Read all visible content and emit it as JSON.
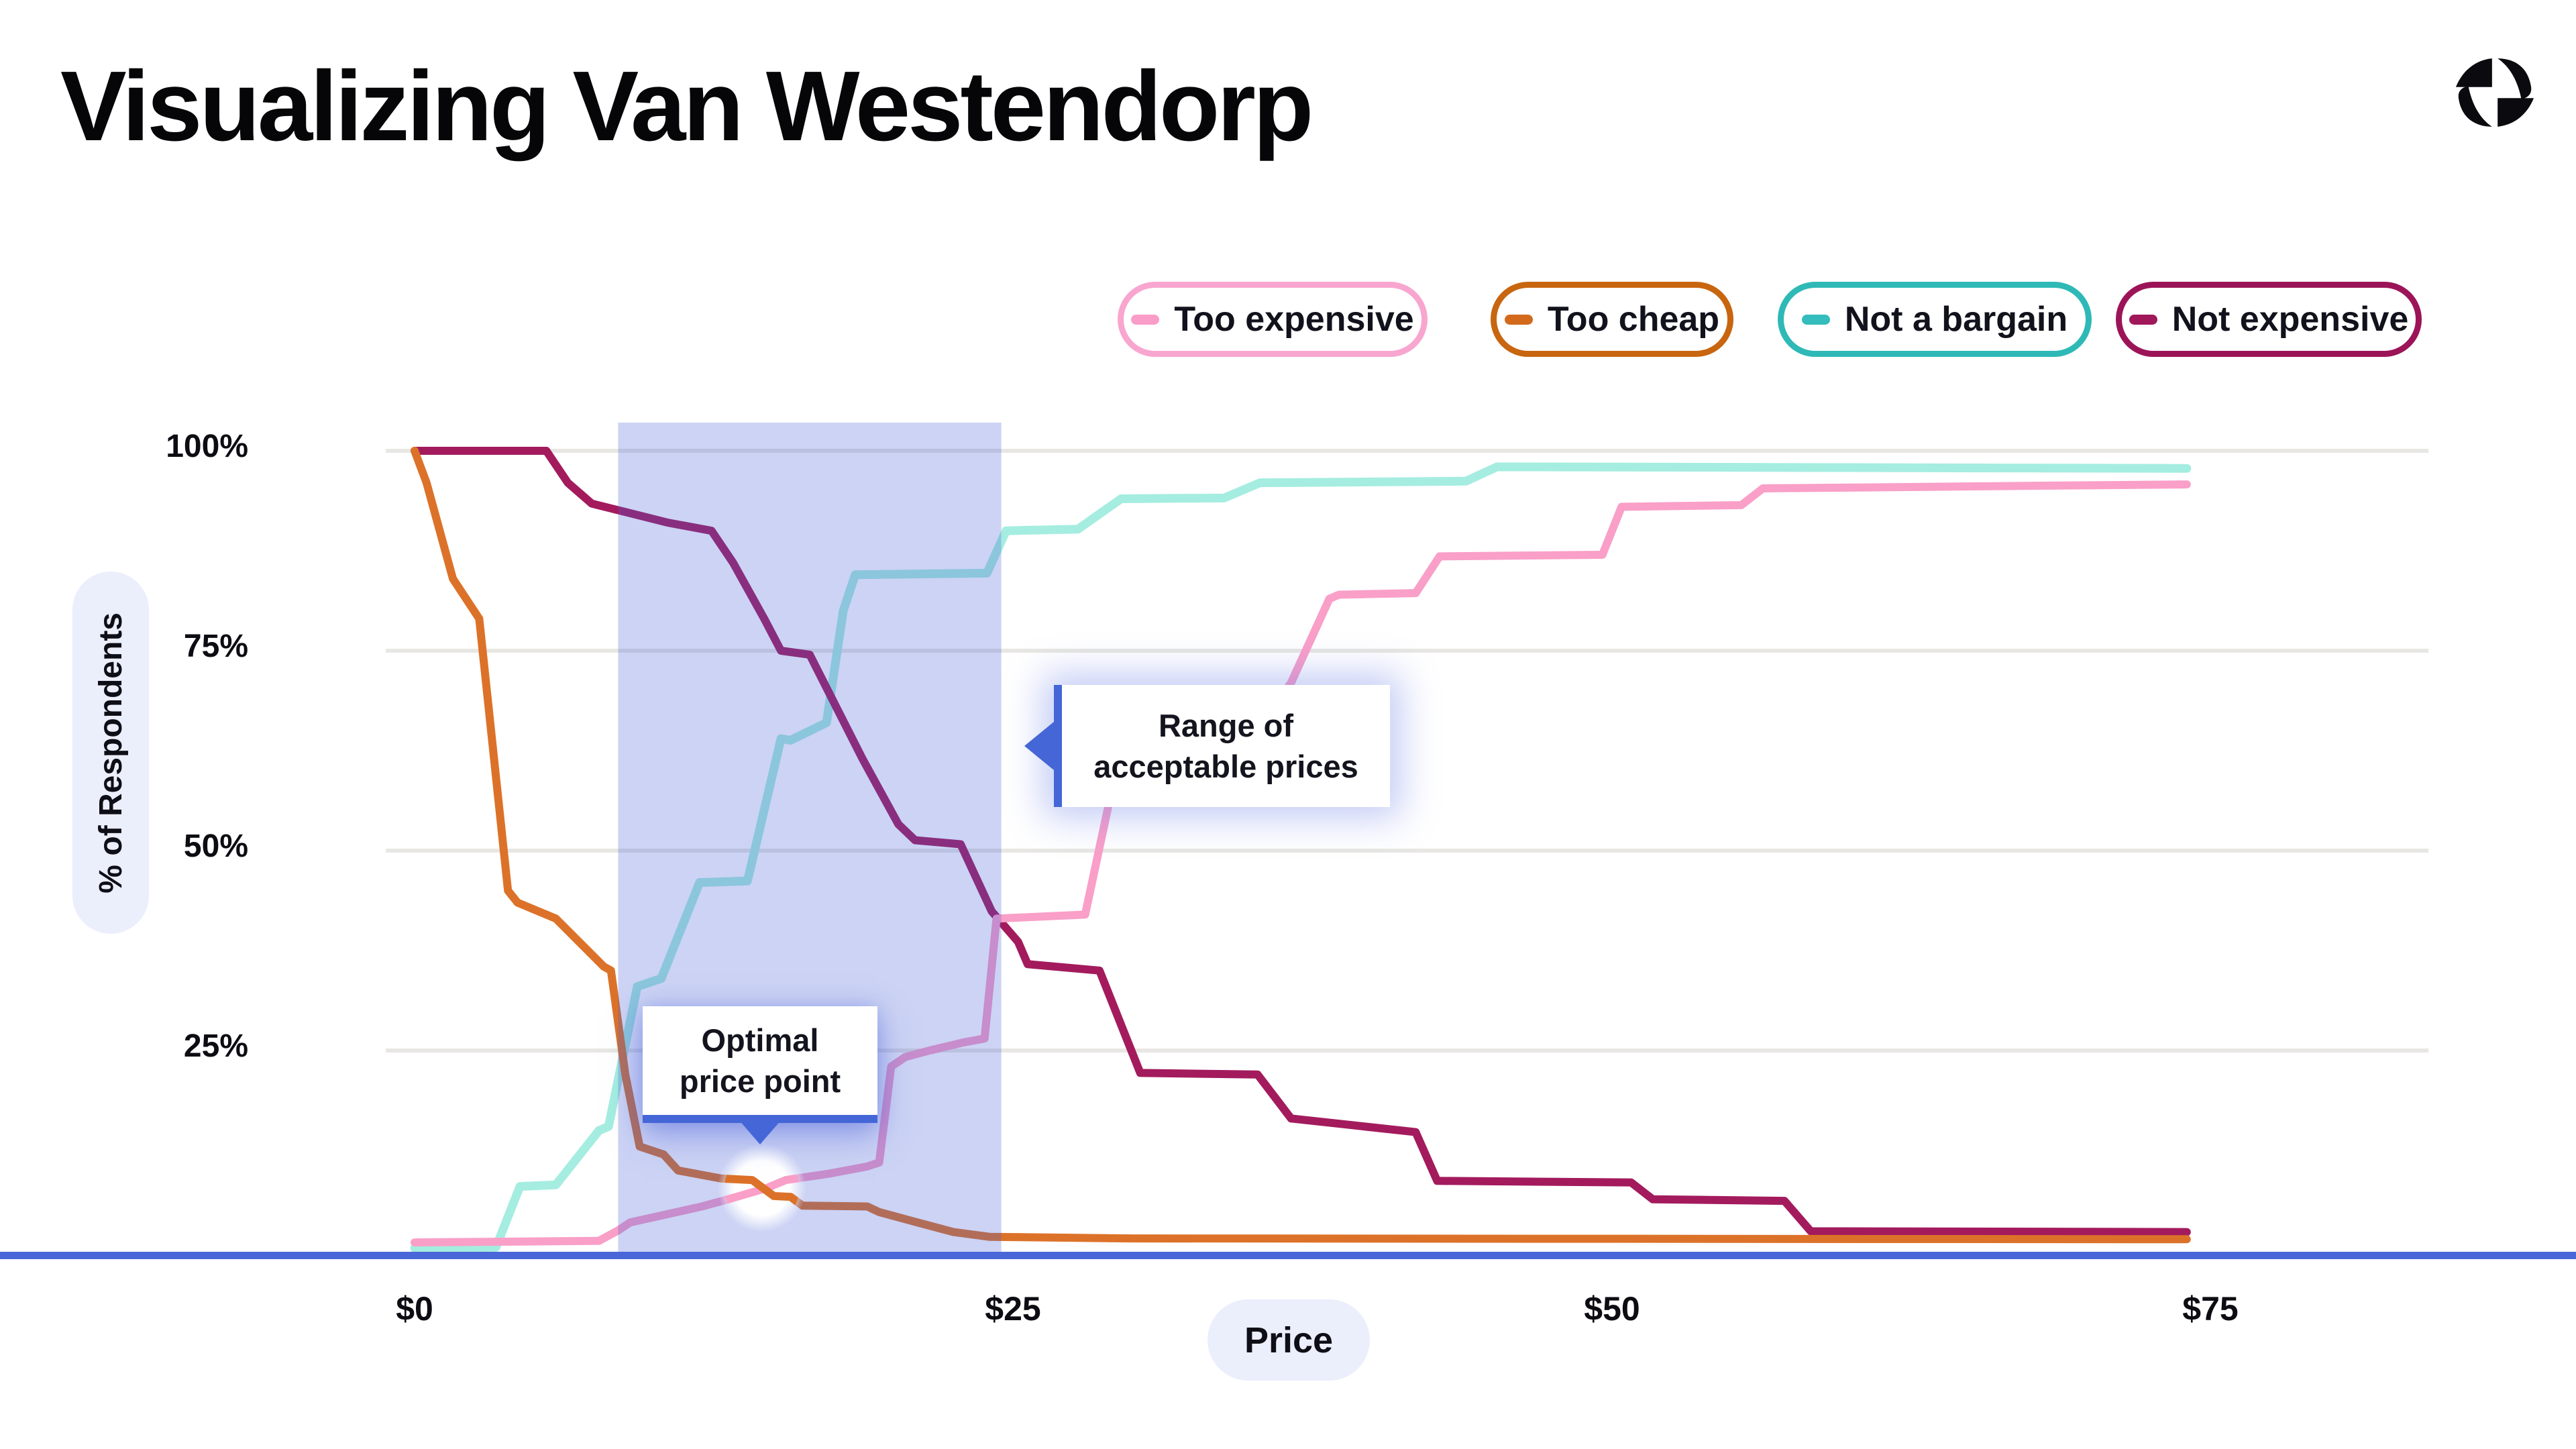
{
  "header": {
    "title": "Visualizing Van Westendorp",
    "logo_color": "#0B0B0F"
  },
  "legend": {
    "items": [
      {
        "label": "Too expensive",
        "swatch_color": "#F99CC7",
        "border_color": "#F8A6CF"
      },
      {
        "label": "Too cheap",
        "swatch_color": "#D2691B",
        "border_color": "#C8650F"
      },
      {
        "label": "Not a bargain",
        "swatch_color": "#35BCBC",
        "border_color": "#2FB9B6"
      },
      {
        "label": "Not expensive",
        "swatch_color": "#A0175A",
        "border_color": "#9C1458"
      }
    ]
  },
  "chart_data": {
    "type": "line",
    "title": "Visualizing Van Westendorp",
    "xlabel": "Price",
    "ylabel": "% of Respondents",
    "x_ticks": [
      "$0",
      "$25",
      "$50",
      "$75"
    ],
    "x_tick_values": [
      0,
      25,
      50,
      75
    ],
    "y_ticks": [
      "100%",
      "75%",
      "50%",
      "25%"
    ],
    "y_tick_values": [
      100,
      75,
      50,
      25
    ],
    "xlim": [
      0,
      90
    ],
    "ylim": [
      0,
      104
    ],
    "grid": "horizontal-only",
    "legend_position": "top-right",
    "gridline_color": "#E8E7E3",
    "axis_line_color": "#4A67D9",
    "accent_blue": "#4566D6",
    "range_fill": "rgba(73,97,216,0.28)",
    "series": [
      {
        "name": "too_expensive",
        "label": "Too expensive",
        "line_color": "#F99FC8",
        "points": [
          [
            0,
            1
          ],
          [
            7.7,
            1.2
          ],
          [
            8.5,
            2.5
          ],
          [
            9,
            3.5
          ],
          [
            10.5,
            4.5
          ],
          [
            12,
            5.5
          ],
          [
            13.1,
            6.4
          ],
          [
            14.7,
            7.8
          ],
          [
            15.5,
            8.8
          ],
          [
            17.3,
            9.6
          ],
          [
            18.9,
            10.5
          ],
          [
            19.4,
            11
          ],
          [
            19.9,
            23
          ],
          [
            20.5,
            24.2
          ],
          [
            21.5,
            25
          ],
          [
            22.9,
            26
          ],
          [
            23.8,
            26.5
          ],
          [
            24.3,
            41.5
          ],
          [
            28,
            42
          ],
          [
            29,
            56
          ],
          [
            30.5,
            62
          ],
          [
            33,
            65
          ],
          [
            36,
            68.5
          ],
          [
            36.6,
            71
          ],
          [
            38.2,
            81.5
          ],
          [
            38.6,
            82
          ],
          [
            41.8,
            82.2
          ],
          [
            42.8,
            86.8
          ],
          [
            49.6,
            87
          ],
          [
            50.4,
            93
          ],
          [
            55.4,
            93.2
          ],
          [
            56.3,
            95.3
          ],
          [
            74,
            95.8
          ]
        ]
      },
      {
        "name": "too_cheap",
        "label": "Too cheap",
        "line_color": "#DC7229",
        "points": [
          [
            0,
            100
          ],
          [
            0.5,
            96
          ],
          [
            1.6,
            84
          ],
          [
            2.7,
            79
          ],
          [
            3.9,
            45
          ],
          [
            4.3,
            43.5
          ],
          [
            5.9,
            41.5
          ],
          [
            7.9,
            35.5
          ],
          [
            8.2,
            35
          ],
          [
            8.8,
            22
          ],
          [
            9.4,
            13
          ],
          [
            10.4,
            12
          ],
          [
            11,
            10
          ],
          [
            12.8,
            9
          ],
          [
            14.1,
            8.8
          ],
          [
            15,
            6.8
          ],
          [
            15.7,
            6.7
          ],
          [
            16.2,
            5.6
          ],
          [
            18.9,
            5.5
          ],
          [
            19.4,
            4.8
          ],
          [
            21,
            3.5
          ],
          [
            22.5,
            2.3
          ],
          [
            24,
            1.7
          ],
          [
            30,
            1.5
          ],
          [
            74,
            1.4
          ]
        ]
      },
      {
        "name": "not_a_bargain",
        "label": "Not a bargain",
        "line_color": "#A5EDE0",
        "points": [
          [
            0,
            0.3
          ],
          [
            3.4,
            0.4
          ],
          [
            4.4,
            8
          ],
          [
            5.9,
            8.2
          ],
          [
            7.7,
            15
          ],
          [
            8.1,
            15.5
          ],
          [
            9.3,
            33
          ],
          [
            10.3,
            34
          ],
          [
            11.9,
            46
          ],
          [
            13.9,
            46.2
          ],
          [
            15.3,
            64
          ],
          [
            15.7,
            63.8
          ],
          [
            17.2,
            66
          ],
          [
            17.9,
            80
          ],
          [
            18.4,
            84.5
          ],
          [
            23.9,
            84.7
          ],
          [
            24.7,
            90
          ],
          [
            27.7,
            90.2
          ],
          [
            29.5,
            94
          ],
          [
            33.8,
            94.1
          ],
          [
            35.3,
            96
          ],
          [
            43.9,
            96.2
          ],
          [
            45.2,
            98
          ],
          [
            74,
            97.8
          ]
        ]
      },
      {
        "name": "not_expensive",
        "label": "Not expensive",
        "line_color": "#A31B5D",
        "points": [
          [
            0,
            100
          ],
          [
            5.5,
            100
          ],
          [
            6.4,
            96
          ],
          [
            7.4,
            93.4
          ],
          [
            10.6,
            91
          ],
          [
            12.4,
            90
          ],
          [
            13.3,
            86
          ],
          [
            14.6,
            79
          ],
          [
            15.3,
            75
          ],
          [
            16.5,
            74.5
          ],
          [
            18.7,
            61.5
          ],
          [
            20.2,
            53.3
          ],
          [
            20.9,
            51.3
          ],
          [
            22.8,
            50.8
          ],
          [
            24.1,
            42.4
          ],
          [
            25.2,
            38.6
          ],
          [
            25.6,
            35.8
          ],
          [
            28.6,
            35
          ],
          [
            30.3,
            22.2
          ],
          [
            35.2,
            22
          ],
          [
            36.6,
            16.5
          ],
          [
            41.8,
            14.8
          ],
          [
            42.7,
            8.7
          ],
          [
            50.8,
            8.5
          ],
          [
            51.7,
            6.4
          ],
          [
            57.2,
            6.2
          ],
          [
            58.3,
            2.4
          ],
          [
            74,
            2.3
          ]
        ]
      }
    ],
    "annotations": {
      "acceptable_range": {
        "label": "Range of\nacceptable prices",
        "x_from": 8.5,
        "x_to": 24.5
      },
      "optimal_point": {
        "label": "Optimal\nprice point",
        "x": 14.5,
        "y": 7.8
      }
    }
  }
}
